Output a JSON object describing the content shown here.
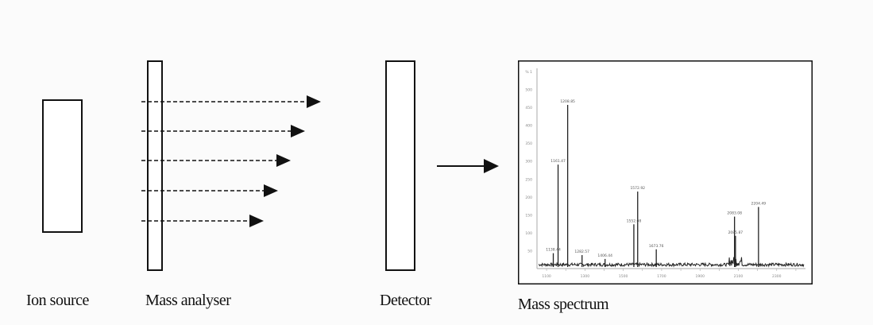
{
  "labels": {
    "ion_source": "Ion source",
    "mass_analyser": "Mass analyser",
    "detector": "Detector",
    "mass_spectrum": "Mass spectrum"
  },
  "colors": {
    "line": "#111111",
    "spectrum_line": "#222222",
    "spectrum_tick_text": "#888888"
  },
  "arrows": {
    "ion_beams": 5,
    "detector_output": 1
  },
  "spectrum": {
    "y_ticks": [
      "50",
      "100",
      "150",
      "200",
      "250",
      "300",
      "350",
      "400",
      "450",
      "500",
      "% 1"
    ],
    "x_ticks": [
      "1100",
      "1200",
      "1300",
      "1400",
      "1500",
      "1600",
      "1700",
      "1800",
      "1900",
      "2000",
      "2100",
      "2200",
      "2300",
      "2400"
    ],
    "peaks": [
      {
        "label": "1138.44",
        "x": 1135,
        "y": 40
      },
      {
        "label": "1161.47",
        "x": 1160,
        "y": 270
      },
      {
        "label": "1208.85",
        "x": 1210,
        "y": 425
      },
      {
        "label": "1282.57",
        "x": 1285,
        "y": 35
      },
      {
        "label": "1406.44",
        "x": 1405,
        "y": 25
      },
      {
        "label": "1552.08",
        "x": 1555,
        "y": 115
      },
      {
        "label": "1572.92",
        "x": 1575,
        "y": 200
      },
      {
        "label": "1673.76",
        "x": 1672,
        "y": 50
      },
      {
        "label": "2083.08",
        "x": 2080,
        "y": 135
      },
      {
        "label": "2085.87",
        "x": 2085,
        "y": 85
      },
      {
        "label": "2204.49",
        "x": 2205,
        "y": 160
      }
    ]
  }
}
